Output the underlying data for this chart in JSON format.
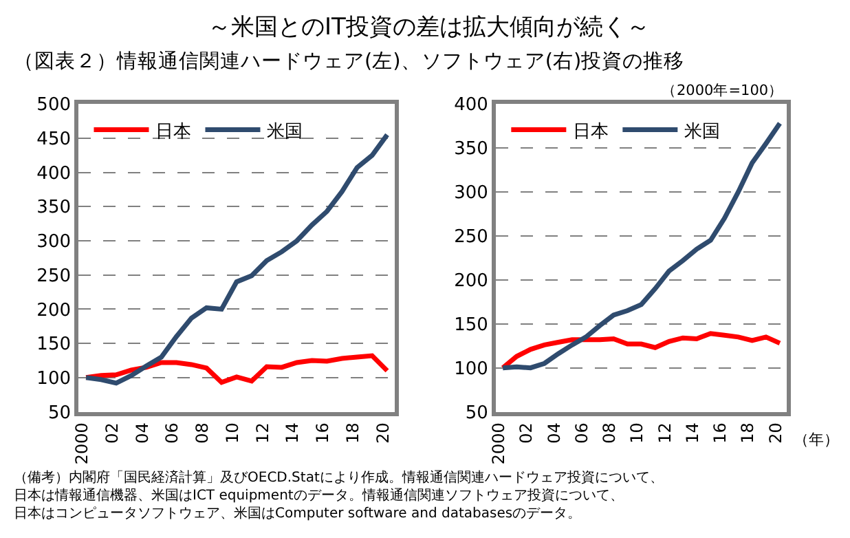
{
  "chart_data": [
    {
      "type": "line",
      "title": "～米国とのIT投資の差は拡大傾向が続く～",
      "subtitle": "（図表２）情報通信関連ハードウェア(左)、ソフトウェア(右)投資の推移",
      "annotations": [
        "（備考）内閣府「国民経済計算」及びOECD.Statにより作成。情報通信関連ハードウェア投資について、日本は情報通信機器、米国はICT equipmentのデータ。情報通信関連ソフトウェア投資について、日本はコンピュータソフトウェア、米国はComputer software and databasesのデータ。"
      ],
      "x": [
        2000,
        2001,
        2002,
        2003,
        2004,
        2005,
        2006,
        2007,
        2008,
        2009,
        2010,
        2011,
        2012,
        2013,
        2014,
        2015,
        2016,
        2017,
        2018,
        2019,
        2020
      ],
      "series": [
        {
          "name": "日本",
          "color": "#ff0000",
          "values": [
            100,
            103,
            104,
            111,
            115,
            122,
            122,
            119,
            114,
            93,
            101,
            95,
            116,
            115,
            122,
            125,
            124,
            128,
            130,
            132,
            110
          ]
        },
        {
          "name": "米国",
          "color": "#2f4b6e",
          "values": [
            100,
            97,
            92,
            103,
            117,
            130,
            160,
            187,
            202,
            200,
            240,
            249,
            271,
            284,
            300,
            323,
            343,
            372,
            407,
            425,
            455
          ]
        }
      ],
      "xlim": [
        1999.5,
        2020.5
      ],
      "xticks": [
        2000,
        {
          "value": 2002,
          "label": "02"
        },
        {
          "value": 2004,
          "label": "04"
        },
        {
          "value": 2006,
          "label": "06"
        },
        {
          "value": 2008,
          "label": "08"
        },
        {
          "value": 2010,
          "label": "10"
        },
        {
          "value": 2012,
          "label": "12"
        },
        {
          "value": 2014,
          "label": "14"
        },
        {
          "value": 2016,
          "label": "16"
        },
        {
          "value": 2018,
          "label": "18"
        },
        {
          "value": 2020,
          "label": "20"
        }
      ],
      "ylim": [
        50,
        500
      ],
      "yticks": [
        50,
        100,
        150,
        200,
        250,
        300,
        350,
        400,
        450,
        500
      ],
      "grid": "y",
      "legend": "top left",
      "marker": "none",
      "line_style": "solid"
    },
    {
      "type": "line",
      "ylabel": "（2000年=100）",
      "xlabel": "（年）",
      "x": [
        2000,
        2001,
        2002,
        2003,
        2004,
        2005,
        2006,
        2007,
        2008,
        2009,
        2010,
        2011,
        2012,
        2013,
        2014,
        2015,
        2016,
        2017,
        2018,
        2019,
        2020
      ],
      "series": [
        {
          "name": "日本",
          "color": "#ff0000",
          "values": [
            100,
            113,
            121,
            126,
            129,
            132,
            132,
            132,
            133,
            127,
            127,
            123,
            130,
            134,
            133,
            139,
            137,
            135,
            131,
            135,
            128
          ]
        },
        {
          "name": "米国",
          "color": "#2f4b6e",
          "values": [
            100,
            101,
            100,
            105,
            116,
            126,
            135,
            148,
            160,
            165,
            172,
            190,
            210,
            222,
            235,
            245,
            270,
            300,
            333,
            355,
            378
          ]
        }
      ],
      "xlim": [
        1999.5,
        2020.5
      ],
      "xticks": [
        2000,
        {
          "value": 2002,
          "label": "02"
        },
        {
          "value": 2004,
          "label": "04"
        },
        {
          "value": 2006,
          "label": "06"
        },
        {
          "value": 2008,
          "label": "08"
        },
        {
          "value": 2010,
          "label": "10"
        },
        {
          "value": 2012,
          "label": "12"
        },
        {
          "value": 2014,
          "label": "14"
        },
        {
          "value": 2016,
          "label": "16"
        },
        {
          "value": 2018,
          "label": "18"
        },
        {
          "value": 2020,
          "label": "20"
        }
      ],
      "ylim": [
        50,
        400
      ],
      "yticks": [
        50,
        100,
        150,
        200,
        250,
        300,
        350,
        400
      ],
      "grid": "y",
      "legend": "top left",
      "marker": "none",
      "line_style": "solid"
    }
  ]
}
